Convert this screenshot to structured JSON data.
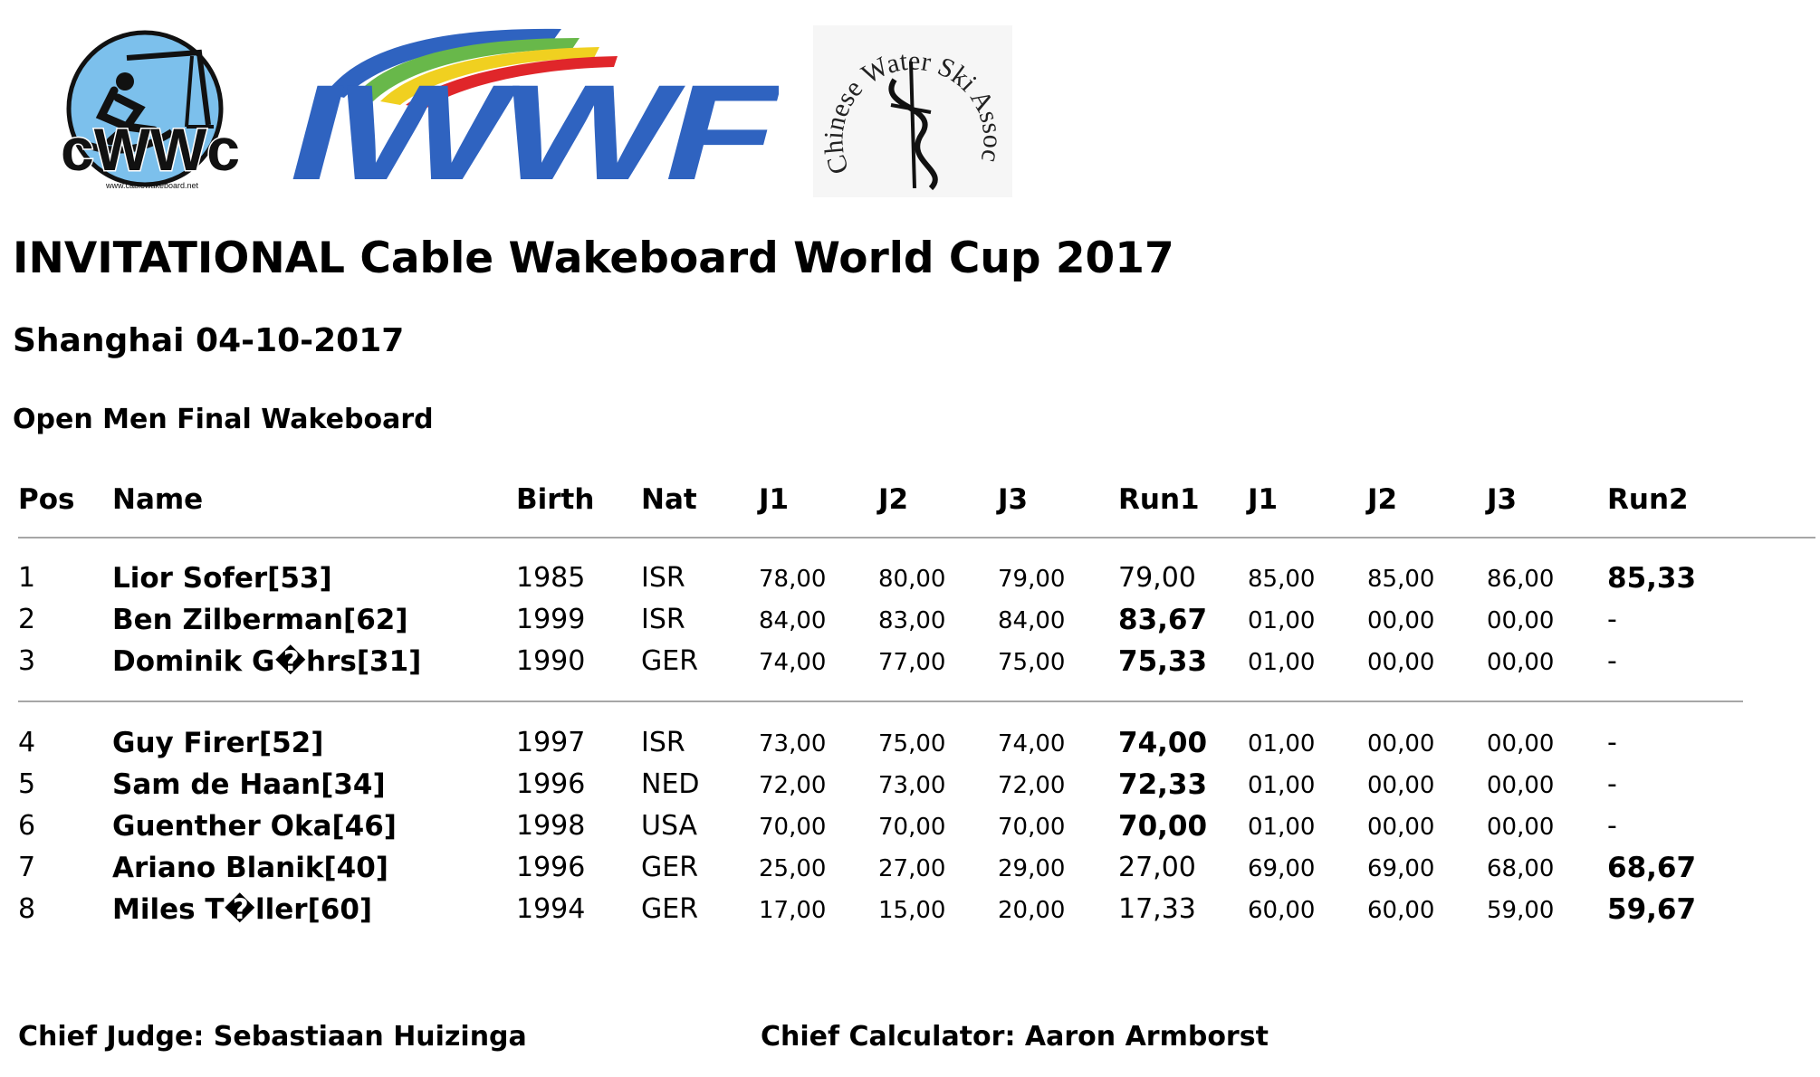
{
  "logos": {
    "cwwc_text": "cWWc",
    "cwwc_url": "www.cablewakeboard.net",
    "iwwf_text": "IWWF",
    "cwsa_text": "Chinese Water Ski Association"
  },
  "title": "INVITATIONAL Cable Wakeboard World Cup 2017",
  "subtitle": "Shanghai 04-10-2017",
  "event": "Open Men Final Wakeboard",
  "headers": [
    "Pos",
    "Name",
    "Birth",
    "Nat",
    "J1",
    "J2",
    "J3",
    "Run1",
    "J1",
    "J2",
    "J3",
    "Run2"
  ],
  "rows": [
    {
      "pos": "1",
      "name": "Lior Sofer[53]",
      "birth": "1985",
      "nat": "ISR",
      "j1a": "78,00",
      "j2a": "80,00",
      "j3a": "79,00",
      "run1": "79,00",
      "j1b": "85,00",
      "j2b": "85,00",
      "j3b": "86,00",
      "run2": "85,33",
      "best": "run2"
    },
    {
      "pos": "2",
      "name": "Ben Zilberman[62]",
      "birth": "1999",
      "nat": "ISR",
      "j1a": "84,00",
      "j2a": "83,00",
      "j3a": "84,00",
      "run1": "83,67",
      "j1b": "01,00",
      "j2b": "00,00",
      "j3b": "00,00",
      "run2": "-",
      "best": "run1"
    },
    {
      "pos": "3",
      "name": "Dominik G�hrs[31]",
      "birth": "1990",
      "nat": "GER",
      "j1a": "74,00",
      "j2a": "77,00",
      "j3a": "75,00",
      "run1": "75,33",
      "j1b": "01,00",
      "j2b": "00,00",
      "j3b": "00,00",
      "run2": "-",
      "best": "run1"
    },
    {
      "pos": "4",
      "name": "Guy Firer[52]",
      "birth": "1997",
      "nat": "ISR",
      "j1a": "73,00",
      "j2a": "75,00",
      "j3a": "74,00",
      "run1": "74,00",
      "j1b": "01,00",
      "j2b": "00,00",
      "j3b": "00,00",
      "run2": "-",
      "best": "run1"
    },
    {
      "pos": "5",
      "name": "Sam de Haan[34]",
      "birth": "1996",
      "nat": "NED",
      "j1a": "72,00",
      "j2a": "73,00",
      "j3a": "72,00",
      "run1": "72,33",
      "j1b": "01,00",
      "j2b": "00,00",
      "j3b": "00,00",
      "run2": "-",
      "best": "run1"
    },
    {
      "pos": "6",
      "name": "Guenther Oka[46]",
      "birth": "1998",
      "nat": "USA",
      "j1a": "70,00",
      "j2a": "70,00",
      "j3a": "70,00",
      "run1": "70,00",
      "j1b": "01,00",
      "j2b": "00,00",
      "j3b": "00,00",
      "run2": "-",
      "best": "run1"
    },
    {
      "pos": "7",
      "name": "Ariano Blanik[40]",
      "birth": "1996",
      "nat": "GER",
      "j1a": "25,00",
      "j2a": "27,00",
      "j3a": "29,00",
      "run1": "27,00",
      "j1b": "69,00",
      "j2b": "69,00",
      "j3b": "68,00",
      "run2": "68,67",
      "best": "run2"
    },
    {
      "pos": "8",
      "name": "Miles T�ller[60]",
      "birth": "1994",
      "nat": "GER",
      "j1a": "17,00",
      "j2a": "15,00",
      "j3a": "20,00",
      "run1": "17,33",
      "j1b": "60,00",
      "j2b": "60,00",
      "j3b": "59,00",
      "run2": "59,67",
      "best": "run2"
    }
  ],
  "footer": {
    "chief_judge": "Chief Judge: Sebastiaan Huizinga",
    "chief_calculator": "Chief Calculator: Aaron Armborst"
  },
  "colors": {
    "iwwf_blue": "#2f63c0",
    "cwwc_sky": "#7cc0ec",
    "rule": "#a7a7a7"
  }
}
